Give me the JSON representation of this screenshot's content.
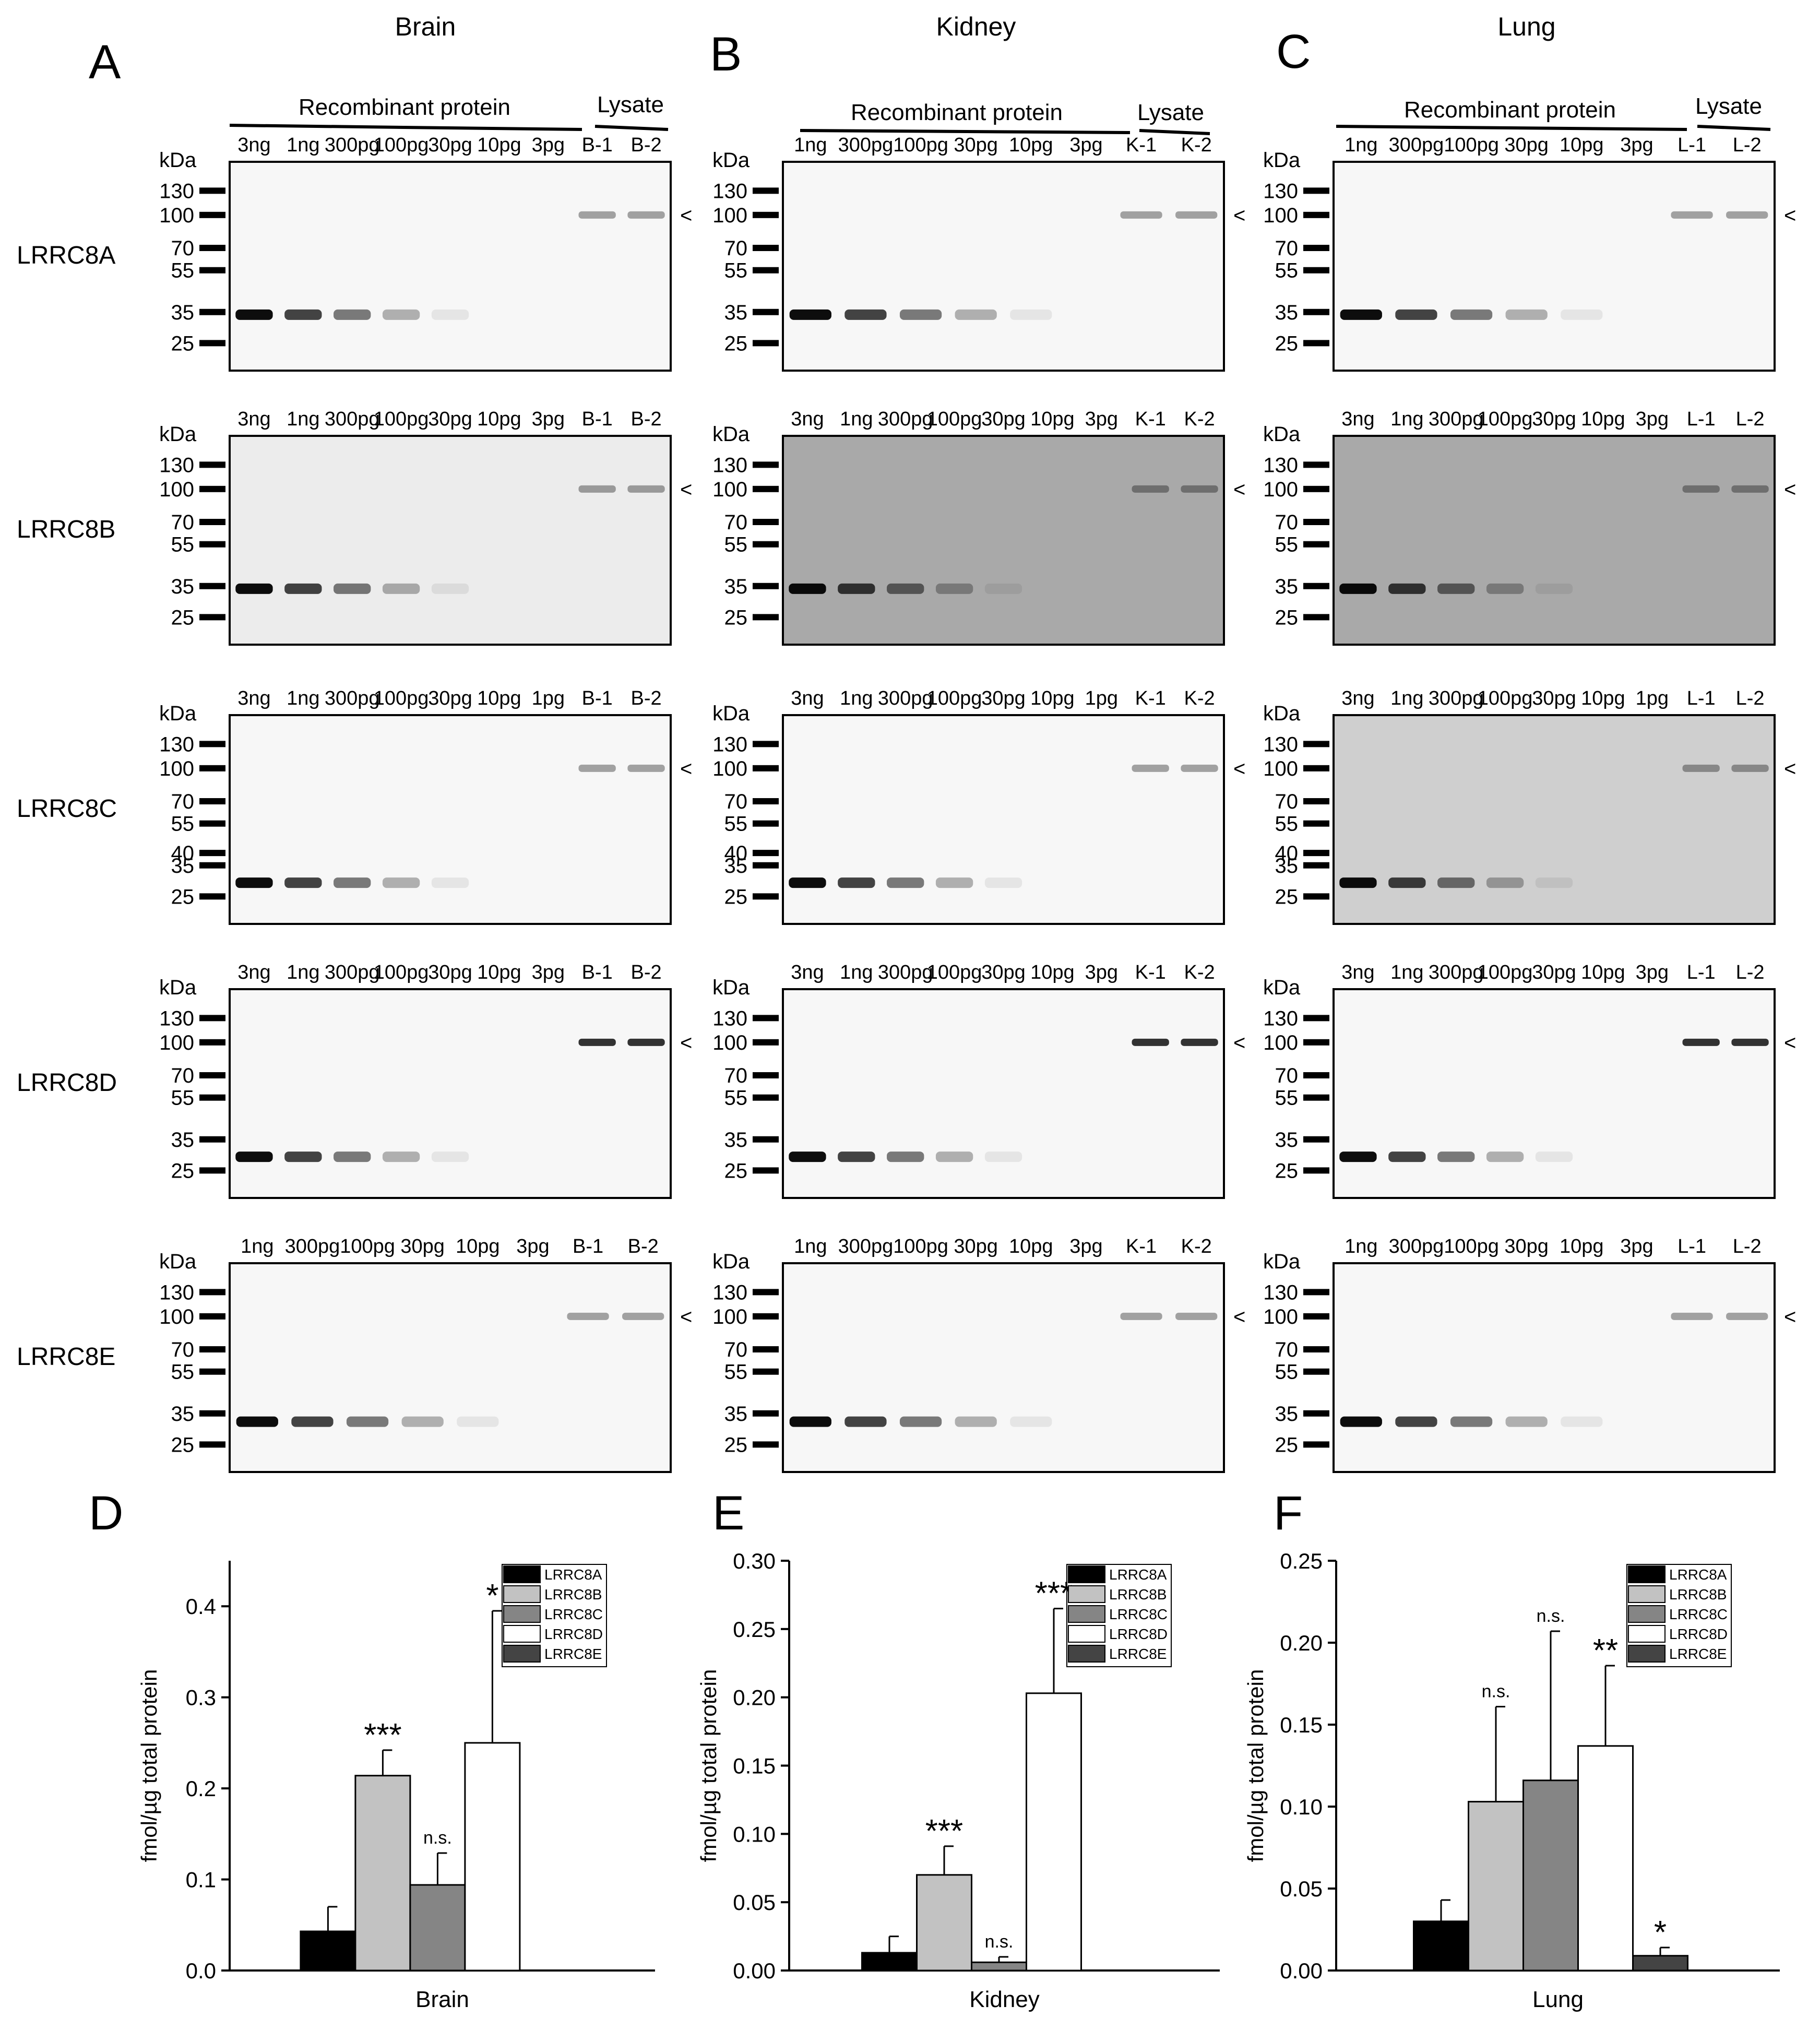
{
  "panel_letters": [
    "A",
    "B",
    "C",
    "D",
    "E",
    "F"
  ],
  "tissue_titles": [
    "Brain",
    "Kidney",
    "Lung"
  ],
  "group_labels": {
    "recombinant": "Recombinant protein",
    "lysate": "Lysate"
  },
  "kda_label": "kDa",
  "blots": [
    {
      "tissue": "Brain",
      "panel": "A",
      "rows": [
        {
          "protein": "LRRC8A",
          "lanes": [
            "3ng",
            "1ng",
            "300pg",
            "100pg",
            "30pg",
            "10pg",
            "3pg",
            "B-1",
            "B-2"
          ],
          "markers": [
            "130",
            "100",
            "70",
            "55",
            "35",
            "25"
          ],
          "background": "#f7f7f7"
        },
        {
          "protein": "LRRC8B",
          "lanes": [
            "3ng",
            "1ng",
            "300pg",
            "100pg",
            "30pg",
            "10pg",
            "3pg",
            "B-1",
            "B-2"
          ],
          "markers": [
            "130",
            "100",
            "70",
            "55",
            "35",
            "25"
          ],
          "background": "#ececec"
        },
        {
          "protein": "LRRC8C",
          "lanes": [
            "3ng",
            "1ng",
            "300pg",
            "100pg",
            "30pg",
            "10pg",
            "1pg",
            "B-1",
            "B-2"
          ],
          "markers": [
            "130",
            "100",
            "70",
            "55",
            "40",
            "35",
            "25"
          ],
          "background": "#f7f7f7"
        },
        {
          "protein": "LRRC8D",
          "lanes": [
            "3ng",
            "1ng",
            "300pg",
            "100pg",
            "30pg",
            "10pg",
            "3pg",
            "B-1",
            "B-2"
          ],
          "markers": [
            "130",
            "100",
            "70",
            "55",
            "35",
            "25"
          ],
          "background": "#f7f7f7"
        },
        {
          "protein": "LRRC8E",
          "lanes": [
            "1ng",
            "300pg",
            "100pg",
            "30pg",
            "10pg",
            "3pg",
            "B-1",
            "B-2"
          ],
          "markers": [
            "130",
            "100",
            "70",
            "55",
            "35",
            "25"
          ],
          "background": "#f7f7f7"
        }
      ]
    },
    {
      "tissue": "Kidney",
      "panel": "B",
      "rows": [
        {
          "protein": "LRRC8A",
          "lanes": [
            "1ng",
            "300pg",
            "100pg",
            "30pg",
            "10pg",
            "3pg",
            "K-1",
            "K-2"
          ],
          "markers": [
            "130",
            "100",
            "70",
            "55",
            "35",
            "25"
          ],
          "background": "#f7f7f7"
        },
        {
          "protein": "LRRC8B",
          "lanes": [
            "3ng",
            "1ng",
            "300pg",
            "100pg",
            "30pg",
            "10pg",
            "3pg",
            "K-1",
            "K-2"
          ],
          "markers": [
            "130",
            "100",
            "70",
            "55",
            "35",
            "25"
          ],
          "background": "#a9a9a9"
        },
        {
          "protein": "LRRC8C",
          "lanes": [
            "3ng",
            "1ng",
            "300pg",
            "100pg",
            "30pg",
            "10pg",
            "1pg",
            "K-1",
            "K-2"
          ],
          "markers": [
            "130",
            "100",
            "70",
            "55",
            "40",
            "35",
            "25"
          ],
          "background": "#f7f7f7"
        },
        {
          "protein": "LRRC8D",
          "lanes": [
            "3ng",
            "1ng",
            "300pg",
            "100pg",
            "30pg",
            "10pg",
            "3pg",
            "K-1",
            "K-2"
          ],
          "markers": [
            "130",
            "100",
            "70",
            "55",
            "35",
            "25"
          ],
          "background": "#f7f7f7"
        },
        {
          "protein": "LRRC8E",
          "lanes": [
            "1ng",
            "300pg",
            "100pg",
            "30pg",
            "10pg",
            "3pg",
            "K-1",
            "K-2"
          ],
          "markers": [
            "130",
            "100",
            "70",
            "55",
            "35",
            "25"
          ],
          "background": "#f7f7f7"
        }
      ]
    },
    {
      "tissue": "Lung",
      "panel": "C",
      "rows": [
        {
          "protein": "LRRC8A",
          "lanes": [
            "1ng",
            "300pg",
            "100pg",
            "30pg",
            "10pg",
            "3pg",
            "L-1",
            "L-2"
          ],
          "markers": [
            "130",
            "100",
            "70",
            "55",
            "35",
            "25"
          ],
          "background": "#f7f7f7"
        },
        {
          "protein": "LRRC8B",
          "lanes": [
            "3ng",
            "1ng",
            "300pg",
            "100pg",
            "30pg",
            "10pg",
            "3pg",
            "L-1",
            "L-2"
          ],
          "markers": [
            "130",
            "100",
            "70",
            "55",
            "35",
            "25"
          ],
          "background": "#a9a9a9"
        },
        {
          "protein": "LRRC8C",
          "lanes": [
            "3ng",
            "1ng",
            "300pg",
            "100pg",
            "30pg",
            "10pg",
            "1pg",
            "L-1",
            "L-2"
          ],
          "markers": [
            "130",
            "100",
            "70",
            "55",
            "40",
            "35",
            "25"
          ],
          "background": "#cfcfcf"
        },
        {
          "protein": "LRRC8D",
          "lanes": [
            "3ng",
            "1ng",
            "300pg",
            "100pg",
            "30pg",
            "10pg",
            "3pg",
            "L-1",
            "L-2"
          ],
          "markers": [
            "130",
            "100",
            "70",
            "55",
            "35",
            "25"
          ],
          "background": "#f7f7f7"
        },
        {
          "protein": "LRRC8E",
          "lanes": [
            "1ng",
            "300pg",
            "100pg",
            "30pg",
            "10pg",
            "3pg",
            "L-1",
            "L-2"
          ],
          "markers": [
            "130",
            "100",
            "70",
            "55",
            "35",
            "25"
          ],
          "background": "#f7f7f7"
        }
      ]
    }
  ],
  "legend_entries": [
    "LRRC8A",
    "LRRC8B",
    "LRRC8C",
    "LRRC8D",
    "LRRC8E"
  ],
  "colors": {
    "LRRC8A": "#000000",
    "LRRC8B": "#c2c2c2",
    "LRRC8C": "#858585",
    "LRRC8D": "#ffffff",
    "LRRC8E": "#444444"
  },
  "chart_data": [
    {
      "type": "bar",
      "panel": "D",
      "title": "",
      "xlabel": "Brain",
      "ylabel": "fmol/µg total protein",
      "ylim": [
        0,
        0.45
      ],
      "yticks": [
        "0.0",
        "0.1",
        "0.2",
        "0.3",
        "0.4"
      ],
      "series": [
        {
          "name": "LRRC8A",
          "value": 0.043,
          "error": 0.027,
          "significance": ""
        },
        {
          "name": "LRRC8B",
          "value": 0.214,
          "error": 0.028,
          "significance": "***"
        },
        {
          "name": "LRRC8C",
          "value": 0.094,
          "error": 0.035,
          "significance": "n.s."
        },
        {
          "name": "LRRC8D",
          "value": 0.25,
          "error": 0.145,
          "significance": "*"
        }
      ]
    },
    {
      "type": "bar",
      "panel": "E",
      "title": "",
      "xlabel": "Kidney",
      "ylabel": "fmol/µg total protein",
      "ylim": [
        0,
        0.3
      ],
      "yticks": [
        "0.00",
        "0.05",
        "0.10",
        "0.15",
        "0.20",
        "0.25",
        "0.30"
      ],
      "series": [
        {
          "name": "LRRC8A",
          "value": 0.013,
          "error": 0.012,
          "significance": ""
        },
        {
          "name": "LRRC8B",
          "value": 0.07,
          "error": 0.021,
          "significance": "***"
        },
        {
          "name": "LRRC8C",
          "value": 0.006,
          "error": 0.004,
          "significance": "n.s."
        },
        {
          "name": "LRRC8D",
          "value": 0.203,
          "error": 0.062,
          "significance": "***"
        }
      ]
    },
    {
      "type": "bar",
      "panel": "F",
      "title": "",
      "xlabel": "Lung",
      "ylabel": "fmol/µg total protein",
      "ylim": [
        0,
        0.25
      ],
      "yticks": [
        "0.00",
        "0.05",
        "0.10",
        "0.15",
        "0.20",
        "0.25"
      ],
      "series": [
        {
          "name": "LRRC8A",
          "value": 0.03,
          "error": 0.013,
          "significance": ""
        },
        {
          "name": "LRRC8B",
          "value": 0.103,
          "error": 0.058,
          "significance": "n.s."
        },
        {
          "name": "LRRC8C",
          "value": 0.116,
          "error": 0.091,
          "significance": "n.s."
        },
        {
          "name": "LRRC8D",
          "value": 0.137,
          "error": 0.049,
          "significance": "**"
        },
        {
          "name": "LRRC8E",
          "value": 0.009,
          "error": 0.005,
          "significance": "*"
        }
      ]
    }
  ]
}
